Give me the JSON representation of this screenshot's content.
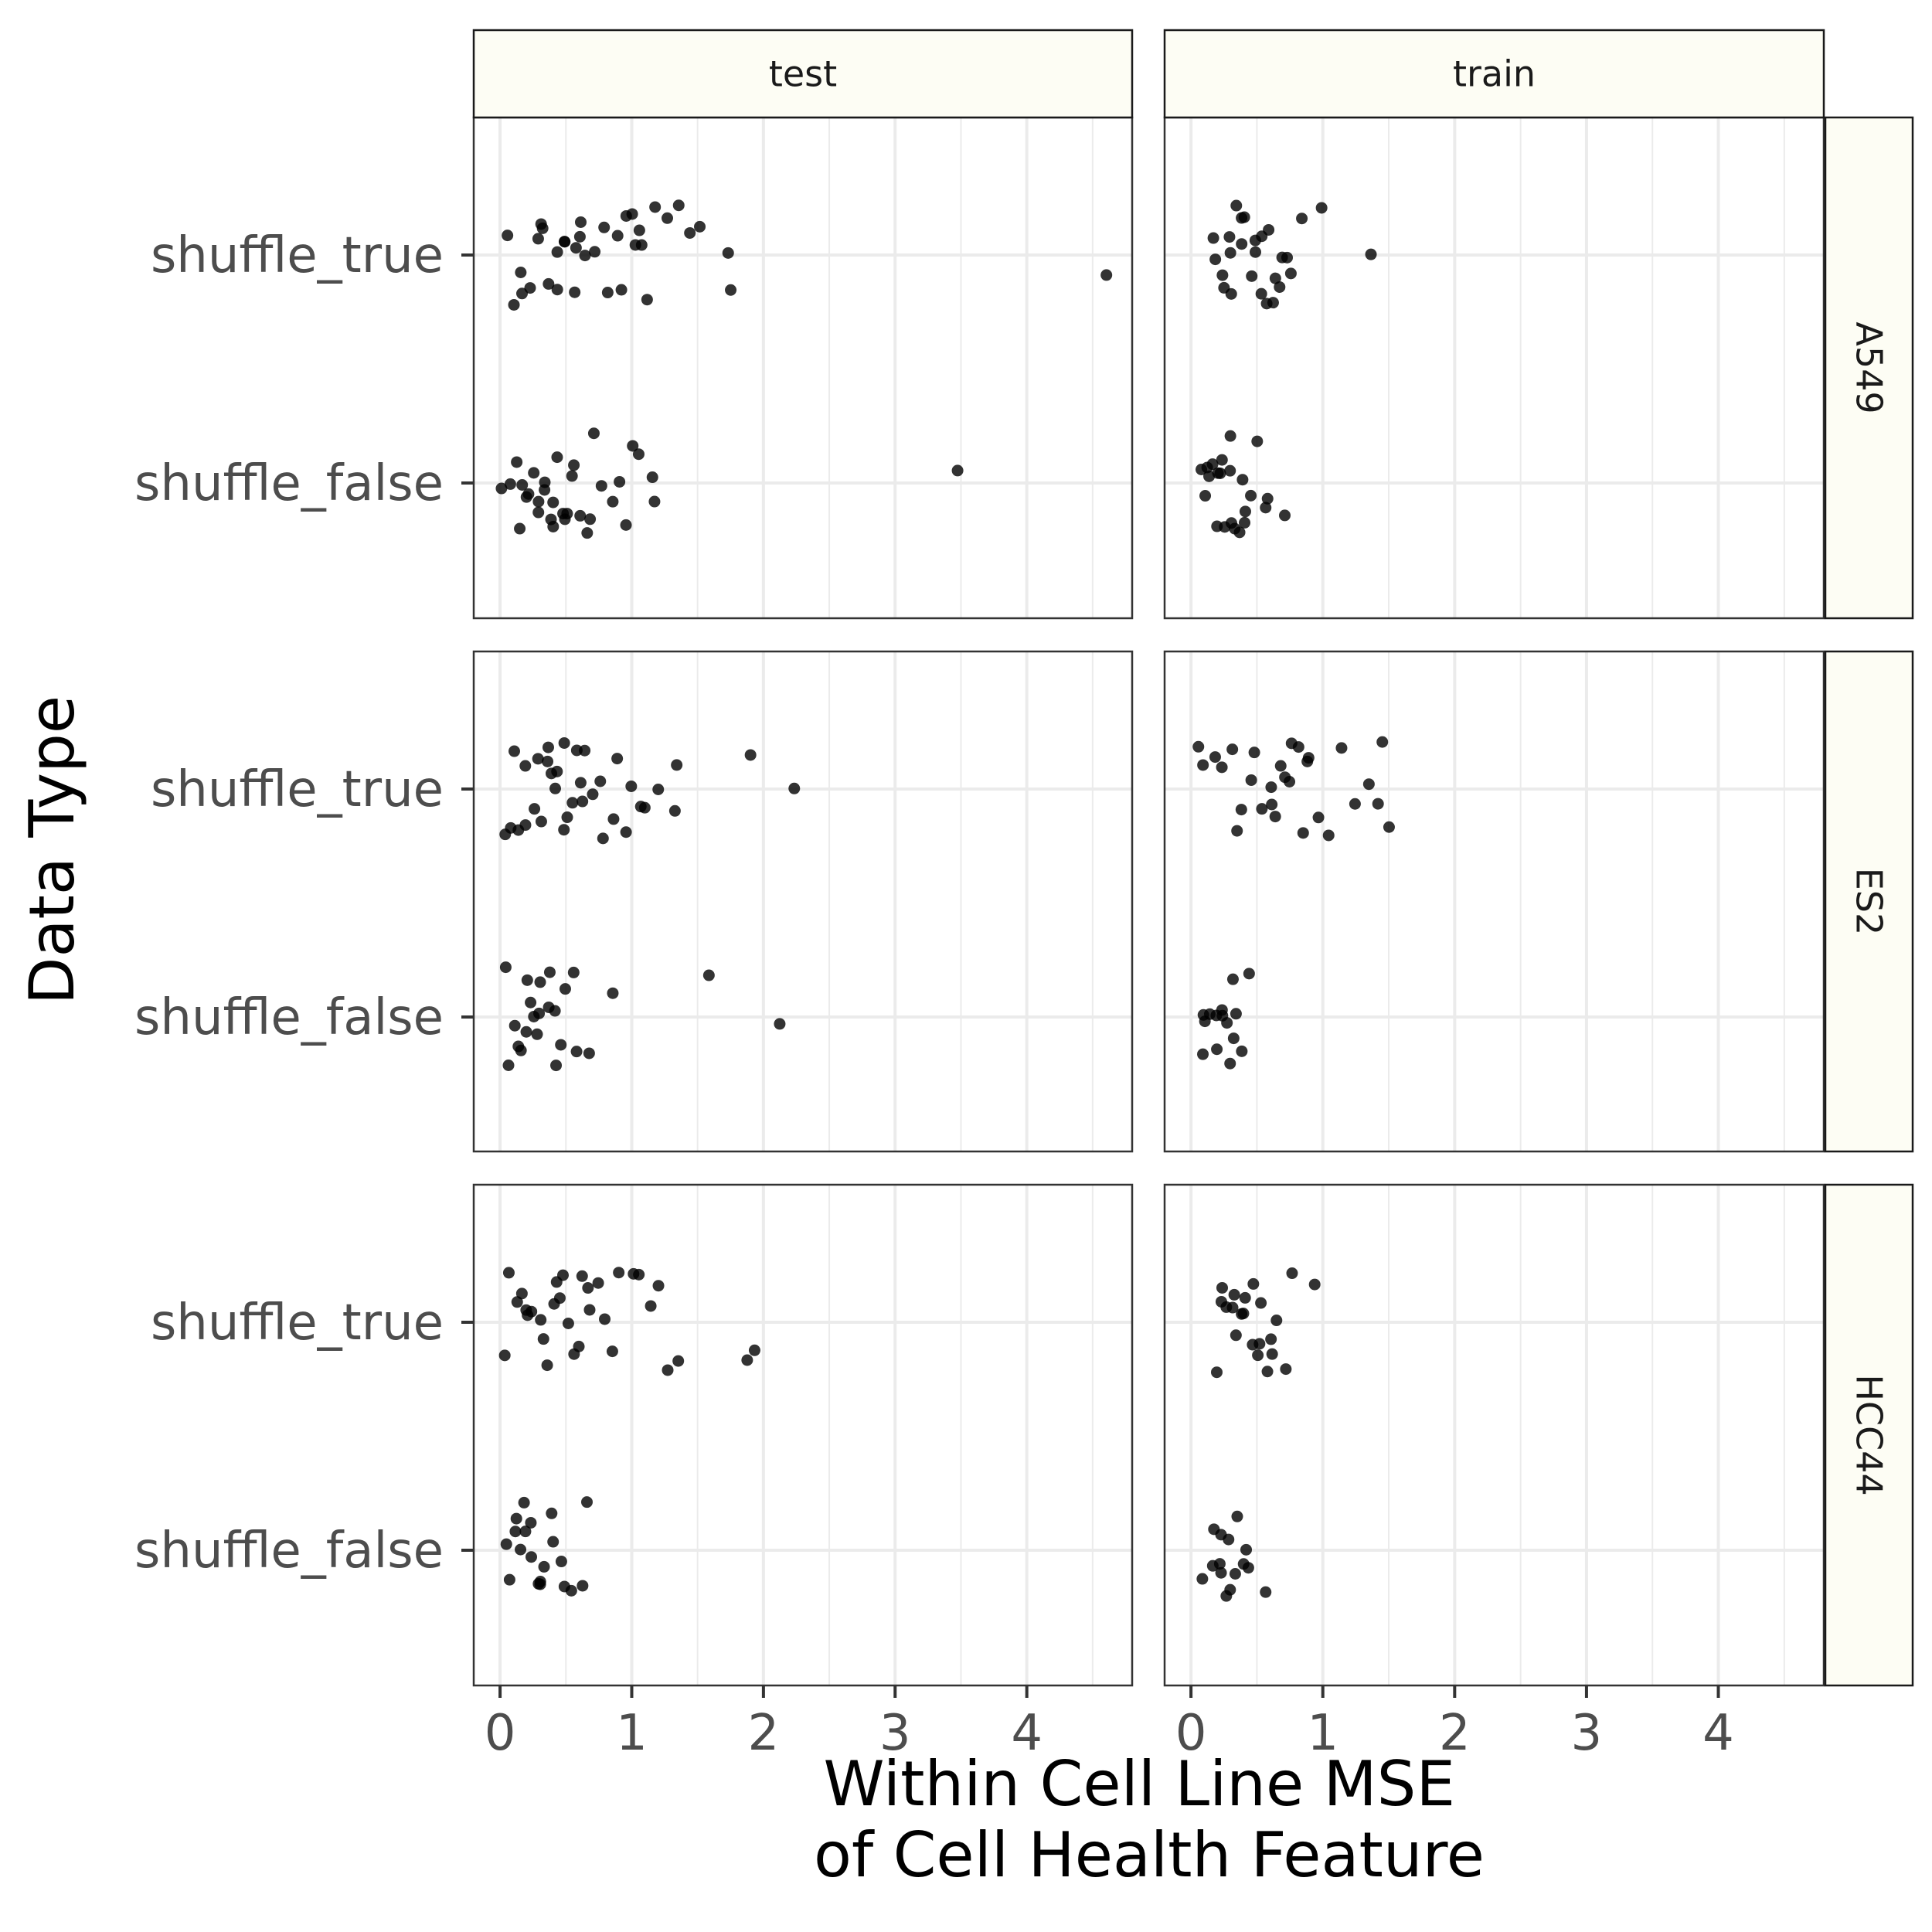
{
  "chart_data": {
    "type": "scatter",
    "title": "",
    "xlabel": [
      "Within Cell Line MSE",
      "of Cell Health Feature"
    ],
    "ylabel": "Data Type",
    "columns": [
      "test",
      "train"
    ],
    "rows": [
      "A549",
      "ES2",
      "HCC44"
    ],
    "categories": [
      "shuffle_true",
      "shuffle_false"
    ],
    "xlim": [
      -0.2,
      4.8
    ],
    "xticks": [
      0,
      1,
      2,
      3,
      4
    ],
    "xtick_labels": [
      "0",
      "1",
      "2",
      "3",
      "4"
    ],
    "panels": [
      {
        "row": "A549",
        "col": "test",
        "series": [
          {
            "category": "shuffle_true",
            "x": [
              0.05,
              0.1,
              0.15,
              0.18,
              0.22,
              0.28,
              0.3,
              0.32,
              0.38,
              0.42,
              0.45,
              0.48,
              0.5,
              0.55,
              0.58,
              0.6,
              0.62,
              0.65,
              0.7,
              0.78,
              0.82,
              0.88,
              0.92,
              0.95,
              1.0,
              1.02,
              1.05,
              1.08,
              1.12,
              1.18,
              1.28,
              1.35,
              1.45,
              1.52,
              1.72,
              1.75,
              4.6
            ]
          },
          {
            "category": "shuffle_false",
            "x": [
              0.03,
              0.08,
              0.12,
              0.15,
              0.18,
              0.2,
              0.22,
              0.25,
              0.28,
              0.3,
              0.32,
              0.35,
              0.38,
              0.4,
              0.42,
              0.45,
              0.48,
              0.5,
              0.52,
              0.55,
              0.58,
              0.6,
              0.65,
              0.68,
              0.72,
              0.78,
              0.85,
              0.9,
              0.95,
              1.0,
              1.05,
              1.15,
              1.18,
              3.48
            ]
          }
        ]
      },
      {
        "row": "A549",
        "col": "train",
        "series": [
          {
            "category": "shuffle_true",
            "x": [
              0.18,
              0.2,
              0.22,
              0.25,
              0.28,
              0.3,
              0.32,
              0.35,
              0.38,
              0.4,
              0.42,
              0.45,
              0.48,
              0.5,
              0.52,
              0.55,
              0.58,
              0.6,
              0.62,
              0.65,
              0.68,
              0.7,
              0.72,
              0.75,
              0.85,
              0.98,
              1.38
            ]
          },
          {
            "category": "shuffle_false",
            "x": [
              0.08,
              0.1,
              0.12,
              0.14,
              0.16,
              0.18,
              0.2,
              0.22,
              0.24,
              0.26,
              0.28,
              0.3,
              0.32,
              0.34,
              0.36,
              0.38,
              0.4,
              0.42,
              0.45,
              0.5,
              0.55,
              0.6,
              0.72
            ]
          }
        ]
      },
      {
        "row": "ES2",
        "col": "test",
        "series": [
          {
            "category": "shuffle_true",
            "x": [
              0.03,
              0.08,
              0.12,
              0.15,
              0.18,
              0.2,
              0.25,
              0.28,
              0.3,
              0.35,
              0.38,
              0.4,
              0.42,
              0.45,
              0.48,
              0.5,
              0.52,
              0.55,
              0.58,
              0.6,
              0.62,
              0.65,
              0.7,
              0.75,
              0.8,
              0.85,
              0.9,
              0.95,
              1.0,
              1.05,
              1.1,
              1.2,
              1.32,
              1.35,
              1.92,
              2.22
            ]
          },
          {
            "category": "shuffle_false",
            "x": [
              0.05,
              0.08,
              0.1,
              0.12,
              0.15,
              0.18,
              0.2,
              0.22,
              0.25,
              0.28,
              0.3,
              0.32,
              0.35,
              0.38,
              0.4,
              0.42,
              0.45,
              0.5,
              0.55,
              0.6,
              0.68,
              0.85,
              1.6,
              2.12
            ]
          }
        ]
      },
      {
        "row": "ES2",
        "col": "train",
        "series": [
          {
            "category": "shuffle_true",
            "x": [
              0.05,
              0.1,
              0.2,
              0.25,
              0.3,
              0.35,
              0.4,
              0.45,
              0.5,
              0.55,
              0.6,
              0.62,
              0.65,
              0.7,
              0.72,
              0.75,
              0.78,
              0.8,
              0.85,
              0.88,
              0.9,
              0.95,
              1.05,
              1.15,
              1.25,
              1.35,
              1.42,
              1.45,
              1.5
            ]
          },
          {
            "category": "shuffle_false",
            "x": [
              0.08,
              0.1,
              0.12,
              0.15,
              0.18,
              0.2,
              0.22,
              0.24,
              0.26,
              0.28,
              0.3,
              0.32,
              0.35,
              0.4,
              0.45
            ]
          }
        ]
      },
      {
        "row": "HCC44",
        "col": "test",
        "series": [
          {
            "category": "shuffle_true",
            "x": [
              0.05,
              0.08,
              0.12,
              0.15,
              0.18,
              0.22,
              0.25,
              0.3,
              0.32,
              0.35,
              0.4,
              0.42,
              0.45,
              0.48,
              0.5,
              0.55,
              0.6,
              0.62,
              0.65,
              0.7,
              0.75,
              0.8,
              0.85,
              0.9,
              1.0,
              1.05,
              1.15,
              1.22,
              1.28,
              1.35,
              1.88,
              1.95
            ]
          },
          {
            "category": "shuffle_false",
            "x": [
              0.05,
              0.08,
              0.1,
              0.12,
              0.15,
              0.18,
              0.2,
              0.22,
              0.25,
              0.28,
              0.3,
              0.32,
              0.35,
              0.38,
              0.4,
              0.45,
              0.5,
              0.55,
              0.62,
              0.65
            ]
          }
        ]
      },
      {
        "row": "HCC44",
        "col": "train",
        "series": [
          {
            "category": "shuffle_true",
            "x": [
              0.18,
              0.22,
              0.25,
              0.28,
              0.3,
              0.32,
              0.35,
              0.38,
              0.4,
              0.42,
              0.45,
              0.48,
              0.5,
              0.52,
              0.55,
              0.58,
              0.6,
              0.62,
              0.65,
              0.7,
              0.75,
              0.92
            ]
          },
          {
            "category": "shuffle_false",
            "x": [
              0.08,
              0.15,
              0.18,
              0.2,
              0.22,
              0.24,
              0.26,
              0.28,
              0.3,
              0.32,
              0.35,
              0.38,
              0.42,
              0.45,
              0.55
            ]
          }
        ]
      }
    ]
  }
}
